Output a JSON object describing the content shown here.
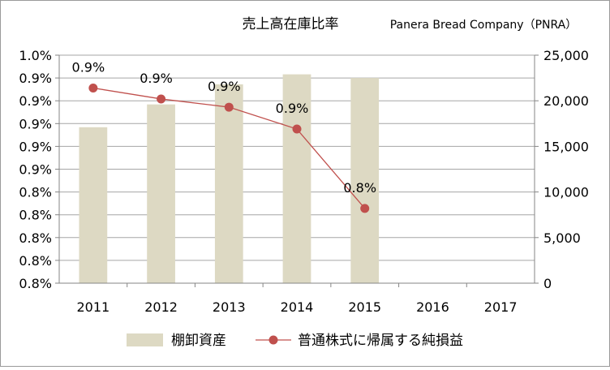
{
  "chart_data": {
    "type": "bar",
    "title": "売上高在庫比率",
    "subtitle": "Panera Bread Company（PNRA）",
    "categories": [
      "2011",
      "2012",
      "2013",
      "2014",
      "2015",
      "2016",
      "2017"
    ],
    "left_axis": {
      "tick_labels": [
        "0.8%",
        "0.8%",
        "0.8%",
        "0.8%",
        "0.8%",
        "0.9%",
        "0.9%",
        "0.9%",
        "0.9%",
        "0.9%",
        "1.0%"
      ]
    },
    "right_axis": {
      "ylim": [
        0,
        25000
      ],
      "ticks": [
        0,
        5000,
        10000,
        15000,
        20000,
        25000
      ],
      "tick_labels": [
        "0",
        "5,000",
        "10,000",
        "15,000",
        "20,000",
        "25,000"
      ]
    },
    "series": [
      {
        "name": "棚卸資産",
        "type": "bar",
        "axis": "right",
        "color": "#ddd9c3",
        "values": [
          17100,
          19600,
          21800,
          22900,
          22500,
          null,
          null
        ]
      },
      {
        "name": "普通株式に帰属する純損益",
        "type": "line",
        "axis": "right",
        "color": "#c0504d",
        "values": [
          21400,
          20200,
          19300,
          16900,
          8200,
          null,
          null
        ],
        "data_labels": [
          "0.9%",
          "0.9%",
          "0.9%",
          "0.9%",
          "0.8%",
          null,
          null
        ]
      }
    ],
    "legend_position": "bottom",
    "grid": "horizontal"
  }
}
